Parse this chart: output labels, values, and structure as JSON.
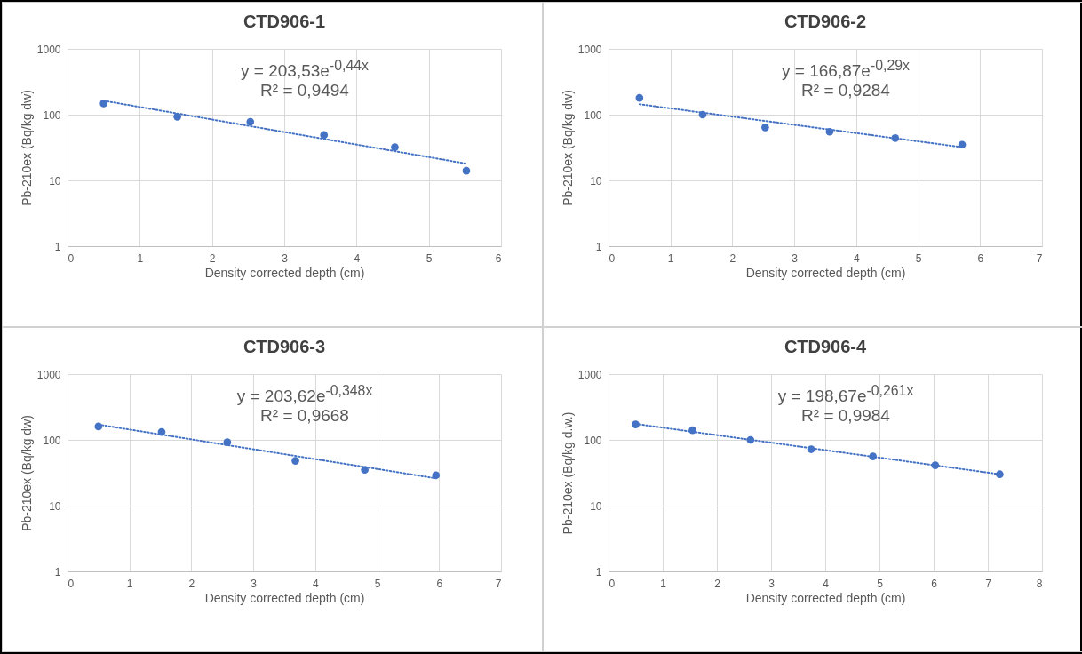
{
  "chart_data": [
    {
      "type": "scatter",
      "title": "CTD906-1",
      "xlabel": "Density corrected depth (cm)",
      "ylabel": "Pb-210ex (Bq/kg dw)",
      "log": "y",
      "grid": true,
      "xlim": [
        0,
        6
      ],
      "xticks": [
        0,
        1,
        2,
        3,
        4,
        5,
        6
      ],
      "ylim": [
        1,
        1000
      ],
      "yticks": [
        1,
        10,
        100,
        1000
      ],
      "annotations": [
        "y = 203,53e$^{-0,44x}$",
        "R² = 0,9494"
      ],
      "series": [
        {
          "marker": "circle",
          "color": "#4472c4",
          "x": [
            0.5,
            1.52,
            2.53,
            3.55,
            4.53,
            5.52
          ],
          "values": [
            148,
            93,
            78,
            49,
            32,
            14
          ]
        },
        {
          "type": "line",
          "marker": "none",
          "color": "#4472c4",
          "line_style": "dotted",
          "x": [
            0.5,
            5.52
          ],
          "values": [
            163,
            18
          ]
        }
      ]
    },
    {
      "type": "scatter",
      "title": "CTD906-2",
      "xlabel": "Density corrected depth (cm)",
      "ylabel": "Pb-210ex (Bq/kg dw)",
      "log": "y",
      "grid": true,
      "xlim": [
        0,
        7
      ],
      "xticks": [
        0,
        1,
        2,
        3,
        4,
        5,
        6,
        7
      ],
      "ylim": [
        1,
        1000
      ],
      "yticks": [
        1,
        10,
        100,
        1000
      ],
      "annotations": [
        "y = 166,87e$^{-0,29x}$",
        "R² = 0,9284"
      ],
      "series": [
        {
          "marker": "circle",
          "color": "#4472c4",
          "x": [
            0.5,
            1.52,
            2.53,
            3.57,
            4.63,
            5.71
          ],
          "values": [
            180,
            100,
            64,
            55,
            44,
            35
          ]
        },
        {
          "type": "line",
          "marker": "none",
          "color": "#4472c4",
          "line_style": "dotted",
          "x": [
            0.5,
            5.71
          ],
          "values": [
            144,
            32
          ]
        }
      ]
    },
    {
      "type": "scatter",
      "title": "CTD906-3",
      "xlabel": "Density corrected depth (cm)",
      "ylabel": "Pb-210ex (Bq/kg dw)",
      "log": "y",
      "grid": true,
      "xlim": [
        0,
        7
      ],
      "xticks": [
        0,
        1,
        2,
        3,
        4,
        5,
        6,
        7
      ],
      "ylim": [
        1,
        1000
      ],
      "yticks": [
        1,
        10,
        100,
        1000
      ],
      "annotations": [
        "y = 203,62e$^{-0,348x}$",
        "R² = 0,9668"
      ],
      "series": [
        {
          "marker": "circle",
          "color": "#4472c4",
          "x": [
            0.5,
            1.52,
            2.58,
            3.68,
            4.8,
            5.95
          ],
          "values": [
            160,
            132,
            92,
            48,
            35,
            29
          ]
        },
        {
          "type": "line",
          "marker": "none",
          "color": "#4472c4",
          "line_style": "dotted",
          "x": [
            0.5,
            5.95
          ],
          "values": [
            171,
            26
          ]
        }
      ]
    },
    {
      "type": "scatter",
      "title": "CTD906-4",
      "xlabel": "Density corrected depth (cm)",
      "ylabel": "Pb-210ex (Bq/kg d.w.)",
      "log": "y",
      "grid": true,
      "xlim": [
        0,
        8
      ],
      "xticks": [
        0,
        1,
        2,
        3,
        4,
        5,
        6,
        7,
        8
      ],
      "ylim": [
        1,
        1000
      ],
      "yticks": [
        1,
        10,
        100,
        1000
      ],
      "annotations": [
        "y = 198,67e$^{-0,261x}$",
        "R² = 0,9984"
      ],
      "series": [
        {
          "marker": "circle",
          "color": "#4472c4",
          "x": [
            0.5,
            1.55,
            2.62,
            3.74,
            4.88,
            6.03,
            7.22
          ],
          "values": [
            172,
            140,
            100,
            72,
            56,
            41,
            30
          ]
        },
        {
          "type": "line",
          "marker": "none",
          "color": "#4472c4",
          "line_style": "dotted",
          "x": [
            0.5,
            7.22
          ],
          "values": [
            175,
            30
          ]
        }
      ]
    }
  ]
}
